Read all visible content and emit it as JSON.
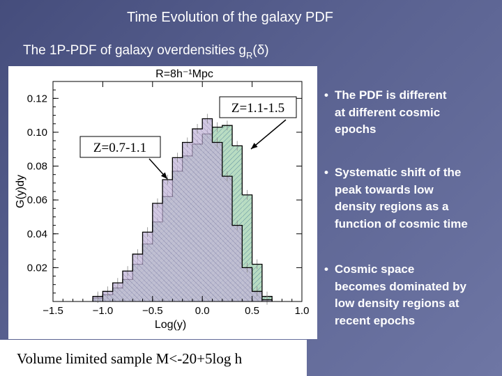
{
  "slide": {
    "title": "Time Evolution of the galaxy PDF",
    "subtitle_main": "The 1P-PDF of galaxy overdensities g",
    "subtitle_sub": "R",
    "subtitle_end": "(δ)"
  },
  "bullets": [
    {
      "lines": [
        "The PDF is different",
        "at different  cosmic",
        "epochs"
      ]
    },
    {
      "lines": [
        "Systematic shift of the",
        "peak towards low",
        "density  regions as a",
        "function of cosmic time"
      ]
    },
    {
      "lines": [
        "Cosmic space",
        "becomes dominated by",
        "low  density regions at",
        "recent epochs"
      ]
    }
  ],
  "footer": "Volume limited sample M<-20+5log h",
  "annotations": {
    "label_high_z": "Z=1.1-1.5",
    "label_low_z": "Z=0.7-1.1"
  },
  "colors": {
    "green_fill": "#b8dcc2",
    "purple_fill": "#c3b5d8",
    "hatch": "#5f8fa0"
  },
  "chart_data": {
    "type": "bar",
    "title": "R=8h⁻¹Mpc",
    "xlabel": "Log(y)",
    "ylabel": "G(y)dy",
    "xlim": [
      -1.5,
      1.0
    ],
    "ylim": [
      0,
      0.13
    ],
    "xticks": [
      "−1.5",
      "−1.0",
      "−0.5",
      "0.0",
      "0.5",
      "1.0"
    ],
    "yticks": [
      "0.02",
      "0.04",
      "0.06",
      "0.08",
      "0.10",
      "0.12"
    ],
    "bin_edges": [
      -1.1,
      -1.0,
      -0.9,
      -0.8,
      -0.7,
      -0.6,
      -0.5,
      -0.4,
      -0.3,
      -0.2,
      -0.1,
      0.0,
      0.1,
      0.2,
      0.3,
      0.4,
      0.5,
      0.6,
      0.7
    ],
    "series": [
      {
        "name": "Z=1.1-1.5",
        "values": [
          0.002,
          0.004,
          0.008,
          0.013,
          0.022,
          0.034,
          0.047,
          0.062,
          0.077,
          0.086,
          0.093,
          0.099,
          0.103,
          0.104,
          0.092,
          0.063,
          0.022,
          0.003
        ]
      },
      {
        "name": "Z=0.7-1.1",
        "values": [
          0.003,
          0.006,
          0.011,
          0.018,
          0.028,
          0.041,
          0.058,
          0.072,
          0.085,
          0.094,
          0.102,
          0.108,
          0.094,
          0.074,
          0.045,
          0.02,
          0.006,
          0.001
        ]
      }
    ]
  }
}
